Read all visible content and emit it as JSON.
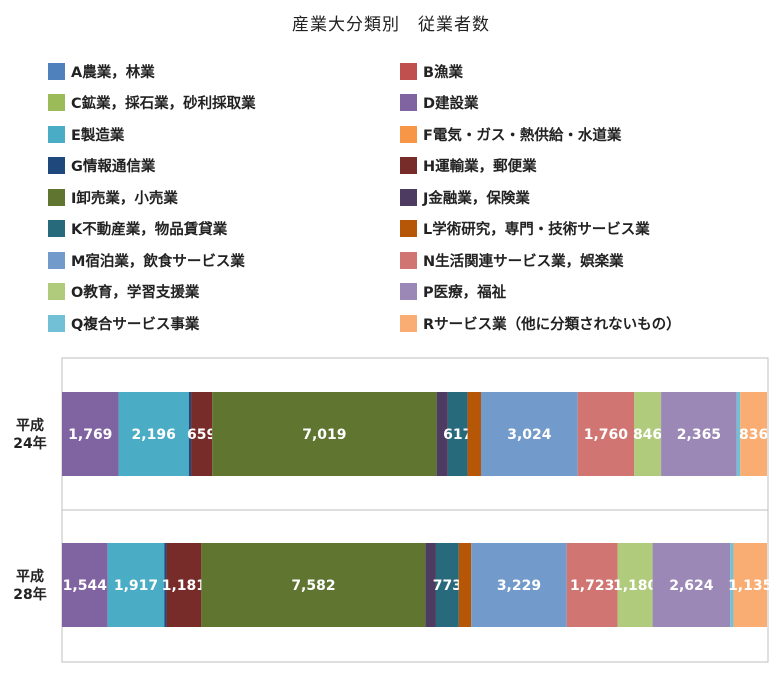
{
  "chart_data": {
    "type": "bar",
    "orientation": "horizontal",
    "stacked": true,
    "title": "産業大分類別　従業者数",
    "categories": [
      "平成24年",
      "平成28年"
    ],
    "category_lines": [
      [
        "平成",
        "24年"
      ],
      [
        "平成",
        "28年"
      ]
    ],
    "legend_position": "top",
    "grid": false,
    "series": [
      {
        "name": "A農業，林業",
        "color": "#4f81bd",
        "values": [
          null,
          null
        ],
        "labels": [
          "",
          ""
        ]
      },
      {
        "name": "B漁業",
        "color": "#c0504d",
        "values": [
          null,
          null
        ],
        "labels": [
          "",
          ""
        ]
      },
      {
        "name": "C鉱業，採石業，砂利採取業",
        "color": "#9bbb59",
        "values": [
          null,
          null
        ],
        "labels": [
          "",
          ""
        ]
      },
      {
        "name": "D建設業",
        "color": "#8064a2",
        "values": [
          1769,
          1544
        ],
        "labels": [
          "1,769",
          "1,544"
        ]
      },
      {
        "name": "E製造業",
        "color": "#4bacc6",
        "values": [
          2196,
          1917
        ],
        "labels": [
          "2,196",
          "1,917"
        ]
      },
      {
        "name": "F電気・ガス・熱供給・水道業",
        "color": "#f79646",
        "values": [
          null,
          null
        ],
        "labels": [
          "",
          ""
        ]
      },
      {
        "name": "G情報通信業",
        "color": "#1f497d",
        "values": [
          70,
          70
        ],
        "labels": [
          "",
          ""
        ]
      },
      {
        "name": "H運輸業，郵便業",
        "color": "#772c2a",
        "values": [
          659,
          1181
        ],
        "labels": [
          "659",
          "1,181"
        ]
      },
      {
        "name": "I卸売業，小売業",
        "color": "#5f7530",
        "values": [
          7019,
          7582
        ],
        "labels": [
          "7,019",
          "7,582"
        ]
      },
      {
        "name": "J金融業，保険業",
        "color": "#4d3b62",
        "values": [
          350,
          350
        ],
        "labels": [
          "",
          ""
        ]
      },
      {
        "name": "K不動産業，物品賃貸業",
        "color": "#276a7c",
        "values": [
          617,
          773
        ],
        "labels": [
          "617",
          "773"
        ]
      },
      {
        "name": "L学術研究，専門・技術サービス業",
        "color": "#b65708",
        "values": [
          420,
          420
        ],
        "labels": [
          "",
          ""
        ]
      },
      {
        "name": "M宿泊業，飲食サービス業",
        "color": "#729aca",
        "values": [
          3024,
          3229
        ],
        "labels": [
          "3,024",
          "3,229"
        ]
      },
      {
        "name": "N生活関連サービス業，娯楽業",
        "color": "#d07572",
        "values": [
          1760,
          1723
        ],
        "labels": [
          "1,760",
          "1,723"
        ]
      },
      {
        "name": "O教育，学習支援業",
        "color": "#afcb7b",
        "values": [
          846,
          1180
        ],
        "labels": [
          "846",
          "1,180"
        ]
      },
      {
        "name": "P医療，福祉",
        "color": "#9c88b6",
        "values": [
          2365,
          2624
        ],
        "labels": [
          "2,365",
          "2,624"
        ]
      },
      {
        "name": "Q複合サービス事業",
        "color": "#72c0d6",
        "values": [
          110,
          110
        ],
        "labels": [
          "",
          ""
        ]
      },
      {
        "name": "Rサービス業（他に分類されないもの）",
        "color": "#f9ad72",
        "values": [
          836,
          1135
        ],
        "labels": [
          "836",
          "1,135"
        ]
      }
    ]
  }
}
